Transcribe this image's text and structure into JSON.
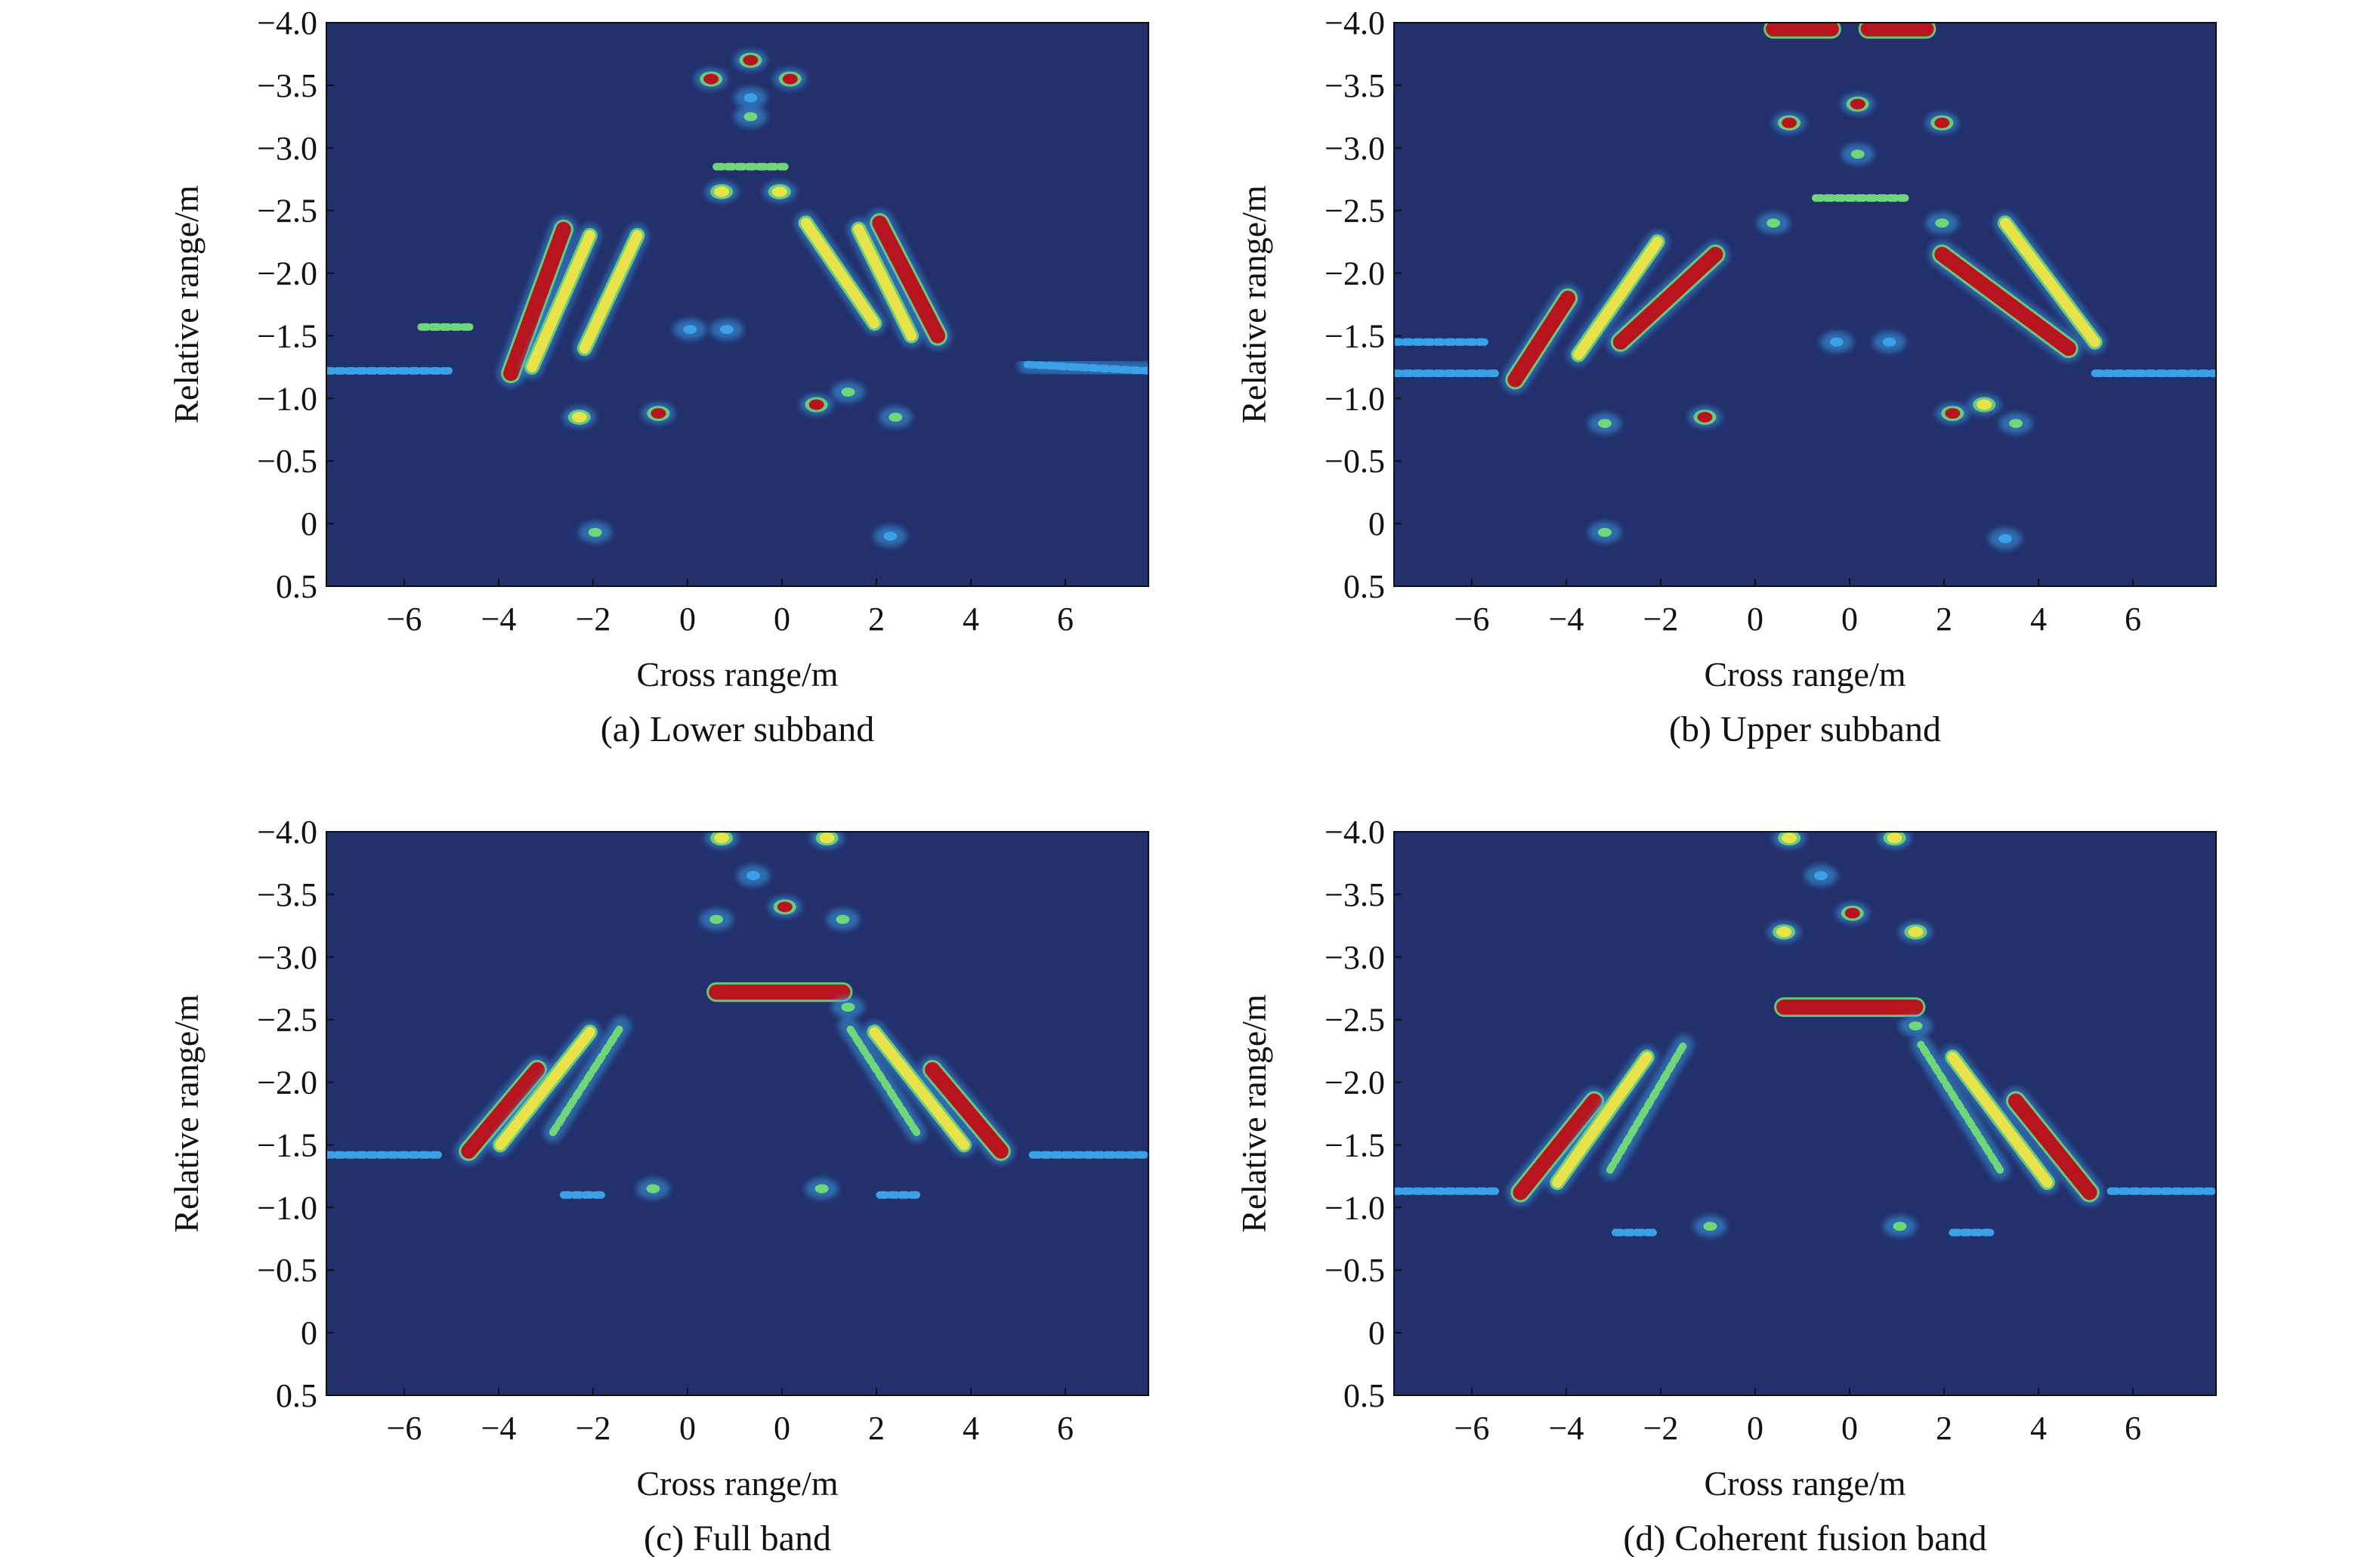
{
  "figure": {
    "colors": {
      "background": "#22306b",
      "low": "#3aa0e8",
      "mid": "#6fd67a",
      "mid_high": "#e8e34a",
      "high": "#b8141e",
      "frame": "#111111"
    }
  },
  "chart_data": [
    {
      "type": "heatmap",
      "caption": "(a) Lower subband",
      "xlabel": "Cross range/m",
      "ylabel": "Relative range/m",
      "xlim": [
        -7.8,
        7.8
      ],
      "ylim": [
        0.5,
        -4.0
      ],
      "x_tick_labels": [
        "−6",
        "−4",
        "−2",
        "0",
        "0",
        "2",
        "4",
        "6"
      ],
      "y_tick_labels": [
        "−4.0",
        "−3.5",
        "−3.0",
        "−2.5",
        "−2.0",
        "−1.5",
        "−1.0",
        "−0.5",
        "0",
        "0.5"
      ],
      "colorscale": "jet",
      "features": [
        {
          "kind": "blob",
          "x": -0.5,
          "y": -3.55,
          "level": 0.9
        },
        {
          "kind": "blob",
          "x": 1.0,
          "y": -3.55,
          "level": 0.9
        },
        {
          "kind": "blob",
          "x": 0.25,
          "y": -3.7,
          "level": 0.85
        },
        {
          "kind": "blob",
          "x": 0.25,
          "y": -3.4,
          "level": 0.4
        },
        {
          "kind": "blob",
          "x": 0.25,
          "y": -3.25,
          "level": 0.6
        },
        {
          "kind": "streak",
          "x1": -0.4,
          "y1": -2.85,
          "x2": 0.9,
          "y2": -2.85,
          "level": 0.55
        },
        {
          "kind": "blob",
          "x": -0.3,
          "y": -2.65,
          "level": 0.7
        },
        {
          "kind": "blob",
          "x": 0.8,
          "y": -2.65,
          "level": 0.7
        },
        {
          "kind": "streak",
          "x1": -4.3,
          "y1": -1.2,
          "x2": -3.3,
          "y2": -2.35,
          "level": 0.95
        },
        {
          "kind": "streak",
          "x1": -3.9,
          "y1": -1.25,
          "x2": -2.8,
          "y2": -2.3,
          "level": 0.8
        },
        {
          "kind": "streak",
          "x1": -2.9,
          "y1": -1.4,
          "x2": -1.9,
          "y2": -2.3,
          "level": 0.75
        },
        {
          "kind": "streak",
          "x1": 3.8,
          "y1": -1.5,
          "x2": 2.7,
          "y2": -2.4,
          "level": 0.95
        },
        {
          "kind": "streak",
          "x1": 3.3,
          "y1": -1.5,
          "x2": 2.3,
          "y2": -2.35,
          "level": 0.8
        },
        {
          "kind": "streak",
          "x1": 2.6,
          "y1": -1.6,
          "x2": 1.3,
          "y2": -2.4,
          "level": 0.75
        },
        {
          "kind": "streak",
          "x1": -7.8,
          "y1": -1.22,
          "x2": -5.4,
          "y2": -1.22,
          "level": 0.3
        },
        {
          "kind": "streak",
          "x1": -6.0,
          "y1": -1.57,
          "x2": -5.0,
          "y2": -1.57,
          "level": 0.5
        },
        {
          "kind": "streak",
          "x1": 5.5,
          "y1": -1.27,
          "x2": 7.8,
          "y2": -1.22,
          "level": 0.3
        },
        {
          "kind": "blob",
          "x": -3.0,
          "y": -0.85,
          "level": 0.65
        },
        {
          "kind": "blob",
          "x": -1.5,
          "y": -0.88,
          "level": 0.85
        },
        {
          "kind": "blob",
          "x": 1.5,
          "y": -0.95,
          "level": 0.85
        },
        {
          "kind": "blob",
          "x": 2.1,
          "y": -1.05,
          "level": 0.6
        },
        {
          "kind": "blob",
          "x": 3.0,
          "y": -0.85,
          "level": 0.55
        },
        {
          "kind": "blob",
          "x": -2.7,
          "y": 0.07,
          "level": 0.5
        },
        {
          "kind": "blob",
          "x": 2.9,
          "y": 0.1,
          "level": 0.3
        },
        {
          "kind": "blob",
          "x": -0.9,
          "y": -1.55,
          "level": 0.25
        },
        {
          "kind": "blob",
          "x": -0.2,
          "y": -1.55,
          "level": 0.25
        }
      ]
    },
    {
      "type": "heatmap",
      "caption": "(b) Upper subband",
      "xlabel": "Cross range/m",
      "ylabel": "Relative range/m",
      "xlim": [
        -7.8,
        7.8
      ],
      "ylim": [
        0.5,
        -4.0
      ],
      "x_tick_labels": [
        "−6",
        "−4",
        "−2",
        "0",
        "0",
        "2",
        "4",
        "6"
      ],
      "y_tick_labels": [
        "−4.0",
        "−3.5",
        "−3.0",
        "−2.5",
        "−2.0",
        "−1.5",
        "−1.0",
        "−0.5",
        "0",
        "0.5"
      ],
      "colorscale": "jet",
      "features": [
        {
          "kind": "streak",
          "x1": -0.6,
          "y1": -3.95,
          "x2": 0.5,
          "y2": -3.95,
          "level": 0.9
        },
        {
          "kind": "streak",
          "x1": 1.2,
          "y1": -3.95,
          "x2": 2.3,
          "y2": -3.95,
          "level": 0.9
        },
        {
          "kind": "blob",
          "x": -0.3,
          "y": -3.2,
          "level": 0.9
        },
        {
          "kind": "blob",
          "x": 2.6,
          "y": -3.2,
          "level": 0.9
        },
        {
          "kind": "blob",
          "x": 1.0,
          "y": -3.35,
          "level": 0.85
        },
        {
          "kind": "blob",
          "x": 1.0,
          "y": -2.95,
          "level": 0.6
        },
        {
          "kind": "streak",
          "x1": 0.2,
          "y1": -2.6,
          "x2": 1.9,
          "y2": -2.6,
          "level": 0.5
        },
        {
          "kind": "blob",
          "x": -0.6,
          "y": -2.4,
          "level": 0.6
        },
        {
          "kind": "blob",
          "x": 2.6,
          "y": -2.4,
          "level": 0.6
        },
        {
          "kind": "streak",
          "x1": -5.5,
          "y1": -1.15,
          "x2": -4.5,
          "y2": -1.8,
          "level": 0.95
        },
        {
          "kind": "streak",
          "x1": -4.3,
          "y1": -1.35,
          "x2": -2.8,
          "y2": -2.25,
          "level": 0.7
        },
        {
          "kind": "streak",
          "x1": -3.5,
          "y1": -1.45,
          "x2": -1.7,
          "y2": -2.15,
          "level": 0.9
        },
        {
          "kind": "streak",
          "x1": 2.6,
          "y1": -2.15,
          "x2": 5.0,
          "y2": -1.4,
          "level": 0.9
        },
        {
          "kind": "streak",
          "x1": 3.8,
          "y1": -2.4,
          "x2": 5.5,
          "y2": -1.45,
          "level": 0.75
        },
        {
          "kind": "streak",
          "x1": -7.8,
          "y1": -1.2,
          "x2": -5.8,
          "y2": -1.2,
          "level": 0.35
        },
        {
          "kind": "streak",
          "x1": -7.8,
          "y1": -1.45,
          "x2": -6.0,
          "y2": -1.45,
          "level": 0.35
        },
        {
          "kind": "streak",
          "x1": 5.5,
          "y1": -1.2,
          "x2": 7.8,
          "y2": -1.2,
          "level": 0.35
        },
        {
          "kind": "blob",
          "x": -3.8,
          "y": -0.8,
          "level": 0.55
        },
        {
          "kind": "blob",
          "x": -1.9,
          "y": -0.85,
          "level": 0.85
        },
        {
          "kind": "blob",
          "x": 2.8,
          "y": -0.88,
          "level": 0.85
        },
        {
          "kind": "blob",
          "x": 3.4,
          "y": -0.95,
          "level": 0.7
        },
        {
          "kind": "blob",
          "x": 4.0,
          "y": -0.8,
          "level": 0.55
        },
        {
          "kind": "blob",
          "x": -3.8,
          "y": 0.07,
          "level": 0.5
        },
        {
          "kind": "blob",
          "x": 3.8,
          "y": 0.12,
          "level": 0.3
        },
        {
          "kind": "blob",
          "x": 0.6,
          "y": -1.45,
          "level": 0.3
        },
        {
          "kind": "blob",
          "x": 1.6,
          "y": -1.45,
          "level": 0.3
        }
      ]
    },
    {
      "type": "heatmap",
      "caption": "(c) Full band",
      "xlabel": "Cross range/m",
      "ylabel": "Relative range/m",
      "xlim": [
        -7.8,
        7.8
      ],
      "ylim": [
        0.5,
        -4.0
      ],
      "x_tick_labels": [
        "−6",
        "−4",
        "−2",
        "0",
        "0",
        "2",
        "4",
        "6"
      ],
      "y_tick_labels": [
        "−4.0",
        "−3.5",
        "−3.0",
        "−2.5",
        "−2.0",
        "−1.5",
        "−1.0",
        "−0.5",
        "0",
        "0.5"
      ],
      "colorscale": "jet",
      "features": [
        {
          "kind": "blob",
          "x": -0.3,
          "y": -3.95,
          "level": 0.7
        },
        {
          "kind": "blob",
          "x": 1.7,
          "y": -3.95,
          "level": 0.7
        },
        {
          "kind": "blob",
          "x": 0.3,
          "y": -3.65,
          "level": 0.35
        },
        {
          "kind": "blob",
          "x": 0.9,
          "y": -3.4,
          "level": 0.85
        },
        {
          "kind": "blob",
          "x": -0.4,
          "y": -3.3,
          "level": 0.6
        },
        {
          "kind": "blob",
          "x": 2.0,
          "y": -3.3,
          "level": 0.6
        },
        {
          "kind": "streak",
          "x1": -0.4,
          "y1": -2.72,
          "x2": 2.0,
          "y2": -2.72,
          "level": 0.95
        },
        {
          "kind": "blob",
          "x": 2.1,
          "y": -2.6,
          "level": 0.55
        },
        {
          "kind": "streak",
          "x1": -5.1,
          "y1": -1.45,
          "x2": -3.8,
          "y2": -2.1,
          "level": 0.95
        },
        {
          "kind": "streak",
          "x1": -4.5,
          "y1": -1.5,
          "x2": -2.8,
          "y2": -2.4,
          "level": 0.7
        },
        {
          "kind": "streak",
          "x1": -3.5,
          "y1": -1.6,
          "x2": -2.2,
          "y2": -2.45,
          "level": 0.45
        },
        {
          "kind": "streak",
          "x1": 5.0,
          "y1": -1.45,
          "x2": 3.7,
          "y2": -2.1,
          "level": 0.95
        },
        {
          "kind": "streak",
          "x1": 4.3,
          "y1": -1.5,
          "x2": 2.6,
          "y2": -2.4,
          "level": 0.7
        },
        {
          "kind": "streak",
          "x1": 3.4,
          "y1": -1.6,
          "x2": 2.1,
          "y2": -2.45,
          "level": 0.45
        },
        {
          "kind": "streak",
          "x1": -7.8,
          "y1": -1.42,
          "x2": -5.6,
          "y2": -1.42,
          "level": 0.3
        },
        {
          "kind": "streak",
          "x1": 5.6,
          "y1": -1.42,
          "x2": 7.8,
          "y2": -1.42,
          "level": 0.3
        },
        {
          "kind": "blob",
          "x": -1.6,
          "y": -1.15,
          "level": 0.55
        },
        {
          "kind": "blob",
          "x": 1.6,
          "y": -1.15,
          "level": 0.55
        },
        {
          "kind": "streak",
          "x1": -3.3,
          "y1": -1.1,
          "x2": -2.5,
          "y2": -1.1,
          "level": 0.3
        },
        {
          "kind": "streak",
          "x1": 2.7,
          "y1": -1.1,
          "x2": 3.4,
          "y2": -1.1,
          "level": 0.3
        }
      ]
    },
    {
      "type": "heatmap",
      "caption": "(d) Coherent fusion band",
      "xlabel": "Cross range/m",
      "ylabel": "Relative range/m",
      "xlim": [
        -7.8,
        7.8
      ],
      "ylim": [
        0.5,
        -4.0
      ],
      "x_tick_labels": [
        "−6",
        "−4",
        "−2",
        "0",
        "0",
        "2",
        "4",
        "6"
      ],
      "y_tick_labels": [
        "−4.0",
        "−3.5",
        "−3.0",
        "−2.5",
        "−2.0",
        "−1.5",
        "−1.0",
        "−0.5",
        "0",
        "0.5"
      ],
      "colorscale": "jet",
      "features": [
        {
          "kind": "blob",
          "x": -0.3,
          "y": -3.95,
          "level": 0.7
        },
        {
          "kind": "blob",
          "x": 1.7,
          "y": -3.95,
          "level": 0.7
        },
        {
          "kind": "blob",
          "x": 0.3,
          "y": -3.65,
          "level": 0.35
        },
        {
          "kind": "blob",
          "x": 0.9,
          "y": -3.35,
          "level": 0.85
        },
        {
          "kind": "blob",
          "x": -0.4,
          "y": -3.2,
          "level": 0.75
        },
        {
          "kind": "blob",
          "x": 2.1,
          "y": -3.2,
          "level": 0.75
        },
        {
          "kind": "streak",
          "x1": -0.4,
          "y1": -2.6,
          "x2": 2.1,
          "y2": -2.6,
          "level": 0.9
        },
        {
          "kind": "blob",
          "x": 2.1,
          "y": -2.45,
          "level": 0.6
        },
        {
          "kind": "streak",
          "x1": -5.4,
          "y1": -1.12,
          "x2": -4.0,
          "y2": -1.85,
          "level": 0.95
        },
        {
          "kind": "streak",
          "x1": -4.7,
          "y1": -1.2,
          "x2": -3.0,
          "y2": -2.2,
          "level": 0.7
        },
        {
          "kind": "streak",
          "x1": -3.7,
          "y1": -1.3,
          "x2": -2.3,
          "y2": -2.3,
          "level": 0.45
        },
        {
          "kind": "streak",
          "x1": 5.4,
          "y1": -1.12,
          "x2": 4.0,
          "y2": -1.85,
          "level": 0.95
        },
        {
          "kind": "streak",
          "x1": 4.6,
          "y1": -1.2,
          "x2": 2.8,
          "y2": -2.2,
          "level": 0.7
        },
        {
          "kind": "streak",
          "x1": 3.7,
          "y1": -1.3,
          "x2": 2.2,
          "y2": -2.3,
          "level": 0.45
        },
        {
          "kind": "streak",
          "x1": -7.8,
          "y1": -1.13,
          "x2": -5.8,
          "y2": -1.13,
          "level": 0.3
        },
        {
          "kind": "streak",
          "x1": 5.8,
          "y1": -1.13,
          "x2": 7.8,
          "y2": -1.13,
          "level": 0.3
        },
        {
          "kind": "blob",
          "x": -1.8,
          "y": -0.85,
          "level": 0.55
        },
        {
          "kind": "blob",
          "x": 1.8,
          "y": -0.85,
          "level": 0.55
        },
        {
          "kind": "streak",
          "x1": -3.6,
          "y1": -0.8,
          "x2": -2.8,
          "y2": -0.8,
          "level": 0.3
        },
        {
          "kind": "streak",
          "x1": 2.8,
          "y1": -0.8,
          "x2": 3.6,
          "y2": -0.8,
          "level": 0.3
        }
      ]
    }
  ]
}
